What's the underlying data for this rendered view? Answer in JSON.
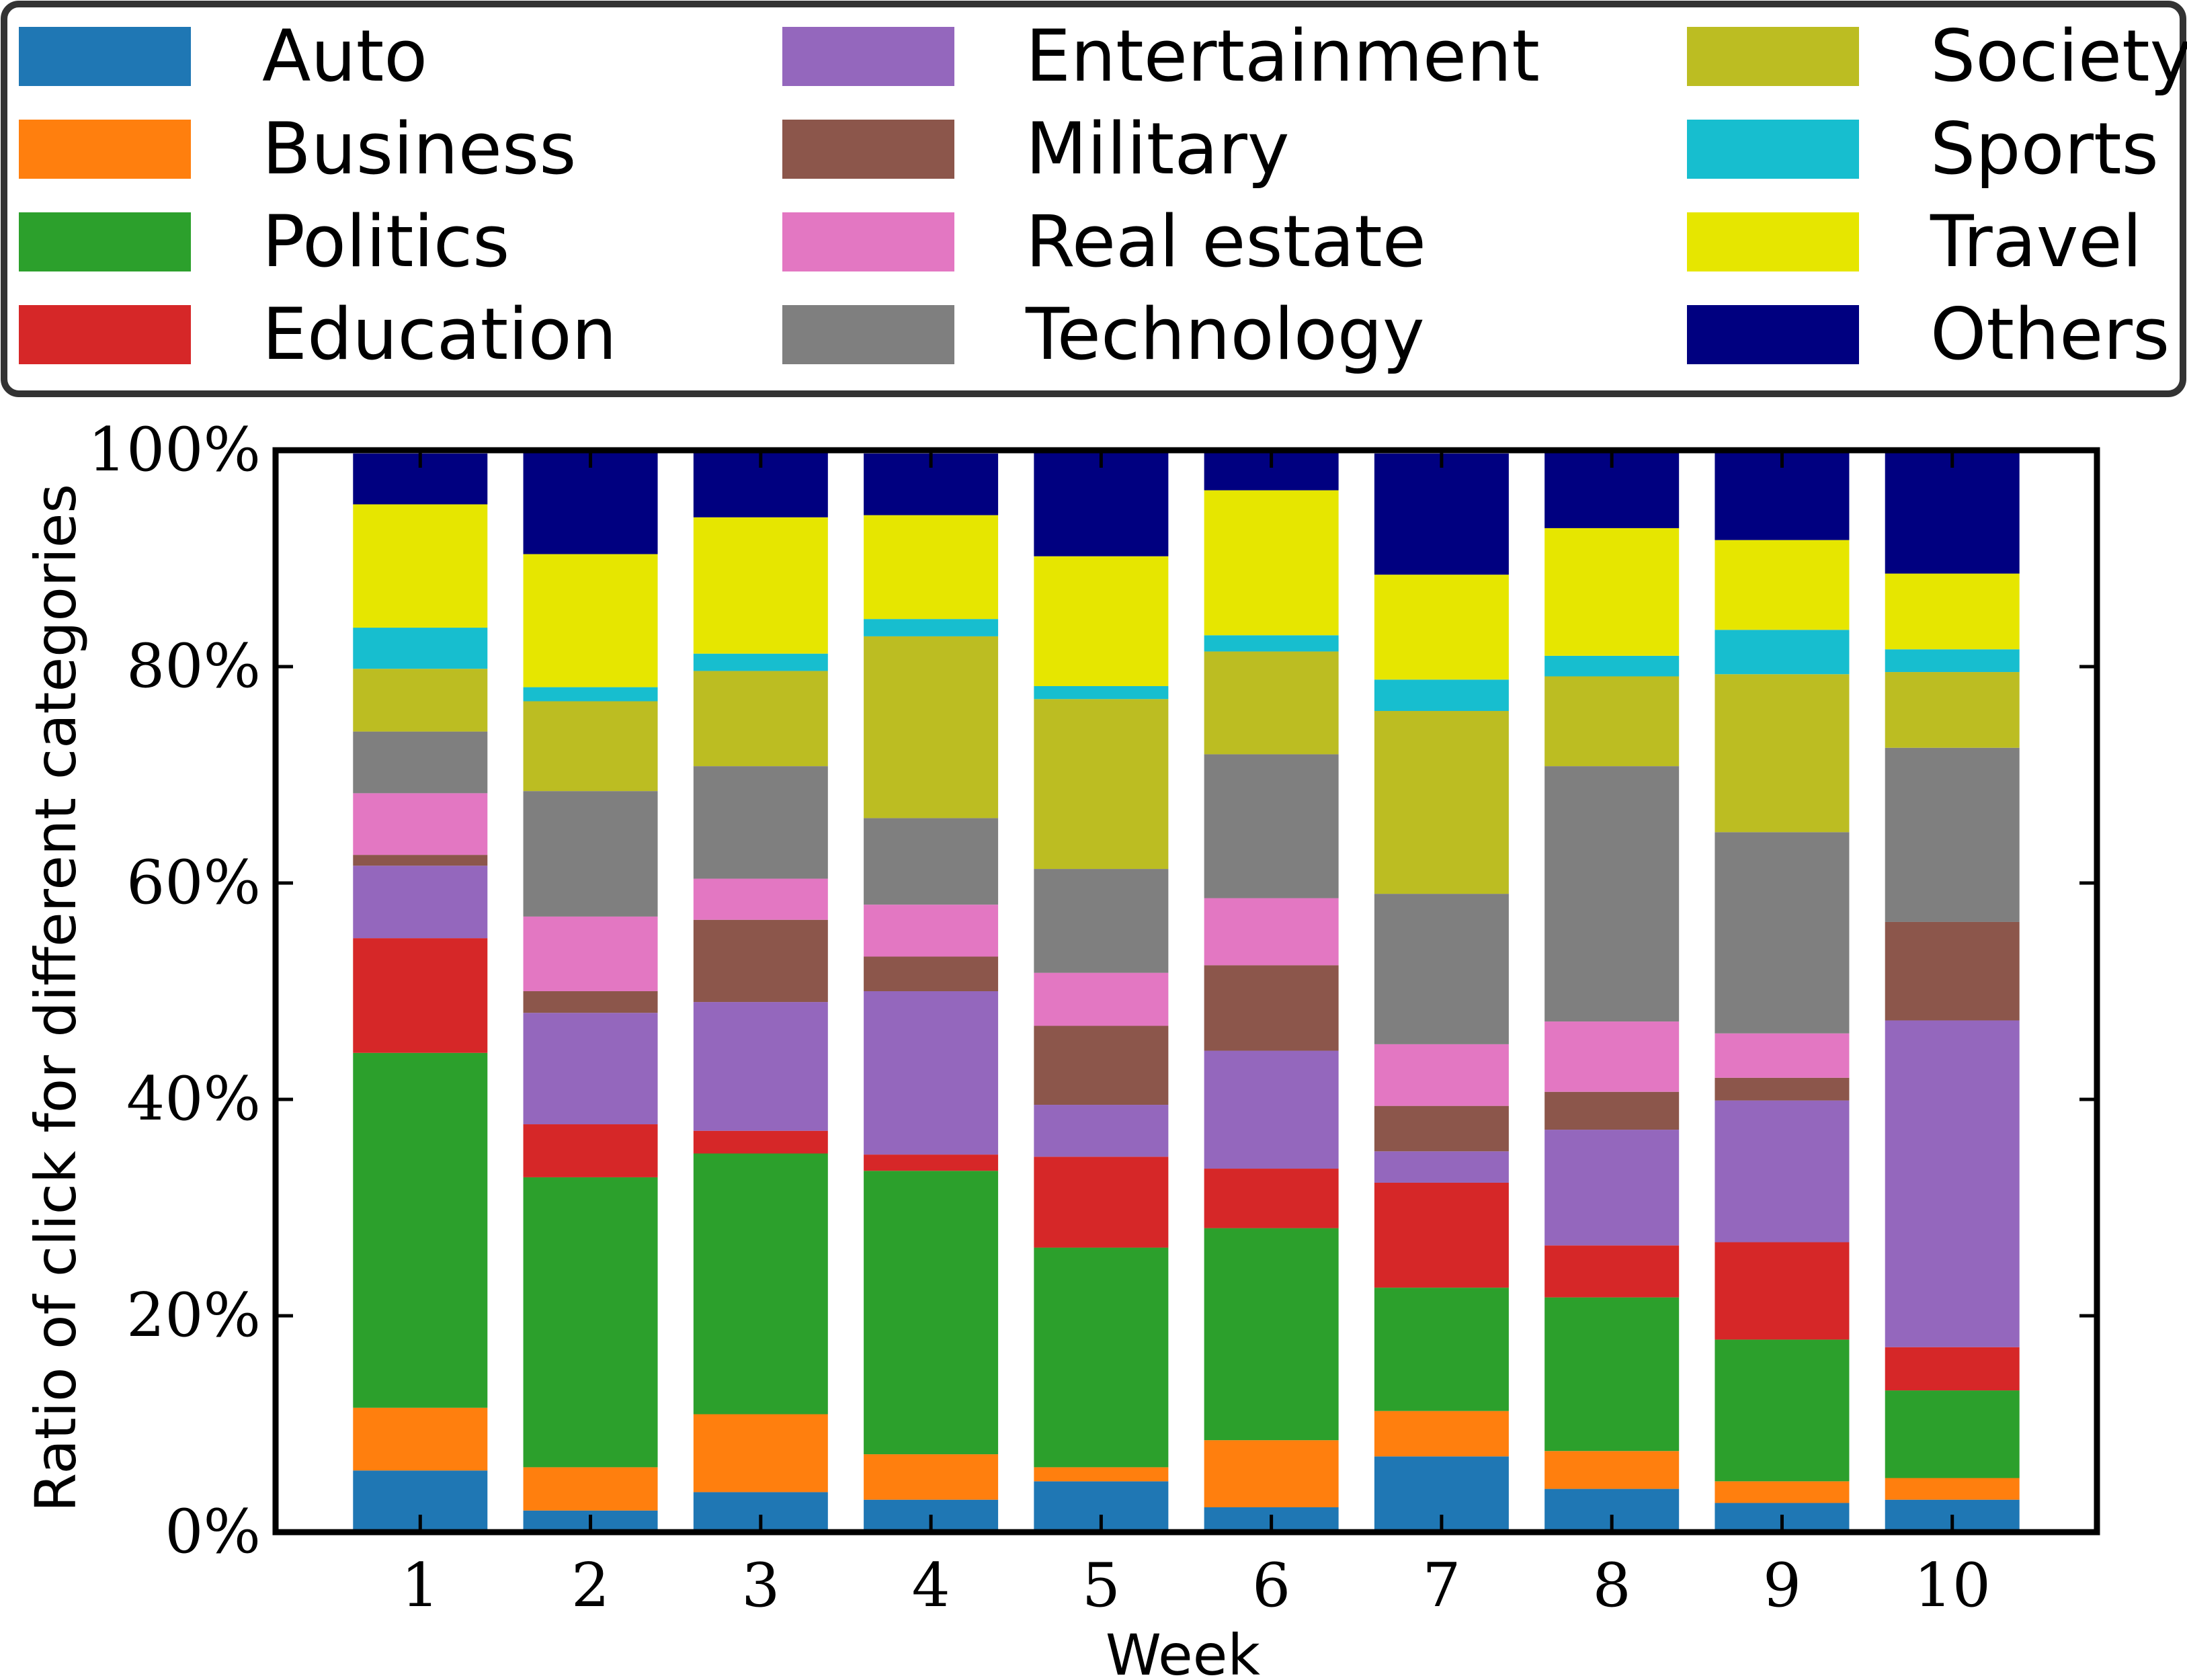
{
  "colors": {
    "Auto": "#1f77b4",
    "Business": "#ff7f0e",
    "Politics": "#2ca02c",
    "Education": "#d62728",
    "Entertainment": "#9467bd",
    "Military": "#8c564b",
    "Real estate": "#e377c2",
    "Technology": "#7f7f7f",
    "Society": "#bcbd22",
    "Sports": "#17becf",
    "Travel": "#e6e600",
    "Others": "#000080"
  },
  "legend": {
    "columns": [
      [
        "Auto",
        "Business",
        "Politics",
        "Education"
      ],
      [
        "Entertainment",
        "Military",
        "Real estate",
        "Technology"
      ],
      [
        "Society",
        "Sports",
        "Travel",
        "Others"
      ]
    ],
    "placement": "top, outside plot"
  },
  "chart_data": {
    "type": "bar",
    "stacked": true,
    "title": "",
    "xlabel": "Week",
    "ylabel": "Ratio of click for different categories",
    "ylim": [
      0,
      100
    ],
    "yticks": [
      "0%",
      "20%",
      "40%",
      "60%",
      "80%",
      "100%"
    ],
    "categories": [
      "1",
      "2",
      "3",
      "4",
      "5",
      "6",
      "7",
      "8",
      "9",
      "10"
    ],
    "series": [
      {
        "name": "Auto",
        "values": [
          5.7,
          2.0,
          3.7,
          3.0,
          4.7,
          2.3,
          7.0,
          4.0,
          2.7,
          3.0
        ]
      },
      {
        "name": "Business",
        "values": [
          5.8,
          4.0,
          7.2,
          4.2,
          1.3,
          6.2,
          4.2,
          3.5,
          2.0,
          2.0
        ]
      },
      {
        "name": "Politics",
        "values": [
          32.8,
          26.8,
          24.1,
          26.2,
          20.3,
          19.6,
          11.4,
          14.2,
          13.1,
          8.1
        ]
      },
      {
        "name": "Education",
        "values": [
          10.6,
          4.9,
          2.1,
          1.5,
          8.4,
          5.5,
          9.7,
          4.8,
          9.0,
          4.0
        ]
      },
      {
        "name": "Entertainment",
        "values": [
          6.7,
          10.3,
          11.9,
          15.1,
          4.8,
          10.9,
          2.9,
          10.7,
          13.1,
          30.2
        ]
      },
      {
        "name": "Military",
        "values": [
          1.0,
          2.0,
          7.6,
          3.2,
          7.3,
          7.9,
          4.2,
          3.5,
          2.1,
          9.1
        ]
      },
      {
        "name": "Real estate",
        "values": [
          5.7,
          6.9,
          3.8,
          4.8,
          4.9,
          6.2,
          5.7,
          6.5,
          4.1,
          0
        ]
      },
      {
        "name": "Technology",
        "values": [
          5.7,
          11.6,
          10.4,
          8.0,
          9.6,
          13.3,
          13.9,
          23.6,
          18.6,
          16.1
        ]
      },
      {
        "name": "Society",
        "values": [
          5.8,
          8.3,
          8.8,
          16.8,
          15.7,
          9.5,
          16.9,
          8.3,
          14.6,
          7.0
        ]
      },
      {
        "name": "Sports",
        "values": [
          3.8,
          1.3,
          1.6,
          1.6,
          1.2,
          1.5,
          2.9,
          1.9,
          4.1,
          2.1
        ]
      },
      {
        "name": "Travel",
        "values": [
          11.4,
          12.3,
          12.6,
          9.6,
          12.0,
          13.4,
          9.7,
          11.8,
          8.3,
          7.0
        ]
      },
      {
        "name": "Others",
        "values": [
          4.7,
          9.6,
          6.2,
          5.7,
          9.8,
          3.6,
          11.2,
          7.1,
          8.2,
          11.2
        ]
      }
    ],
    "grid": false,
    "legend_position": "top"
  }
}
